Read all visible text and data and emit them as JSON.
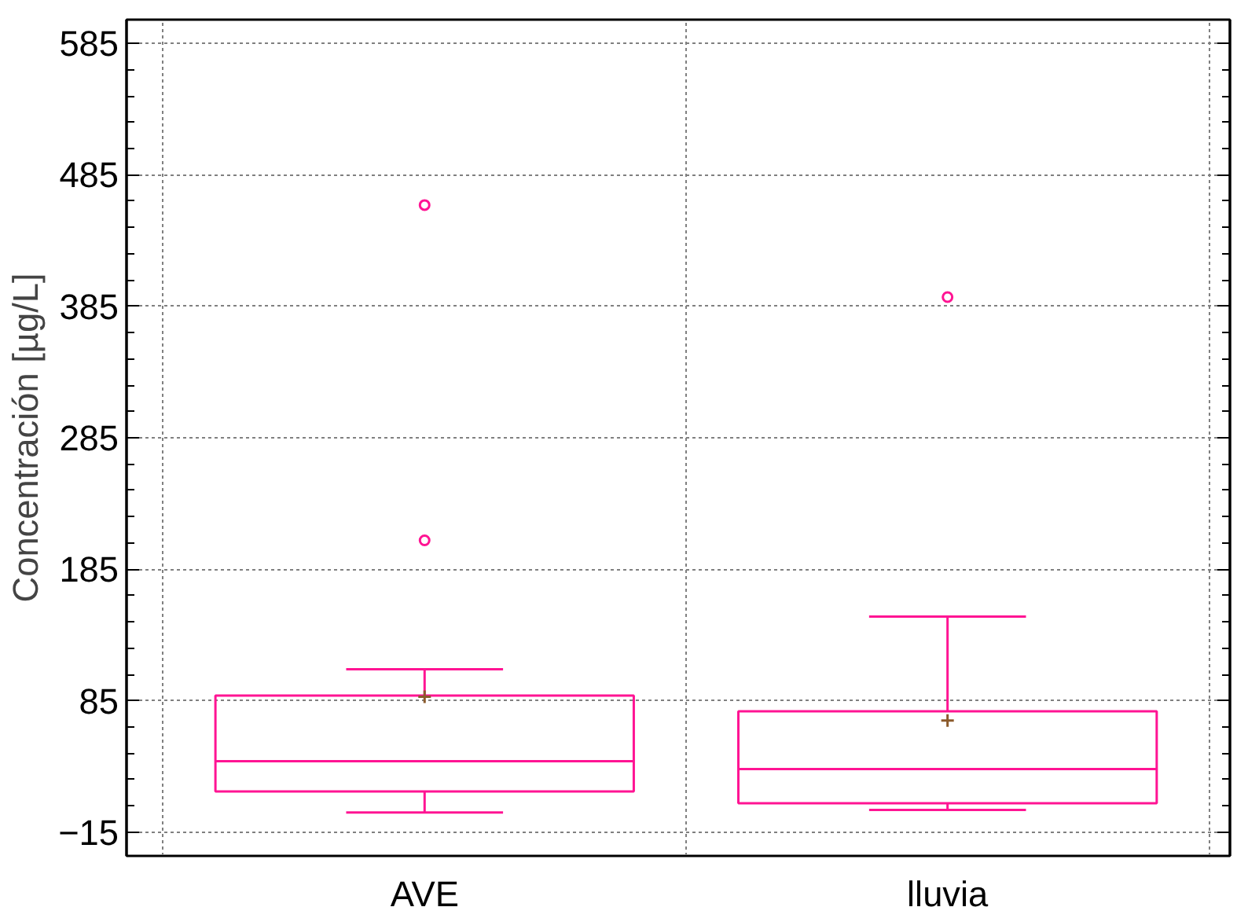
{
  "chart_data": {
    "type": "box",
    "ylabel": "Concentración [µg/L]",
    "categories": [
      "AVE",
      "lluvia"
    ],
    "series": [
      {
        "color": "#ff1493",
        "boxes": [
          {
            "low": 0,
            "q1": 16,
            "median": 39,
            "q3": 89,
            "high": 109,
            "mean": 88,
            "outliers": [
              207,
              462
            ]
          },
          {
            "low": 2,
            "q1": 7,
            "median": 33,
            "q3": 77,
            "high": 149,
            "mean": 70,
            "outliers": [
              392
            ]
          }
        ]
      }
    ],
    "ylim": [
      -33,
      603
    ],
    "yticks": [
      -15,
      85,
      185,
      285,
      385,
      485,
      585
    ],
    "grid": true
  }
}
